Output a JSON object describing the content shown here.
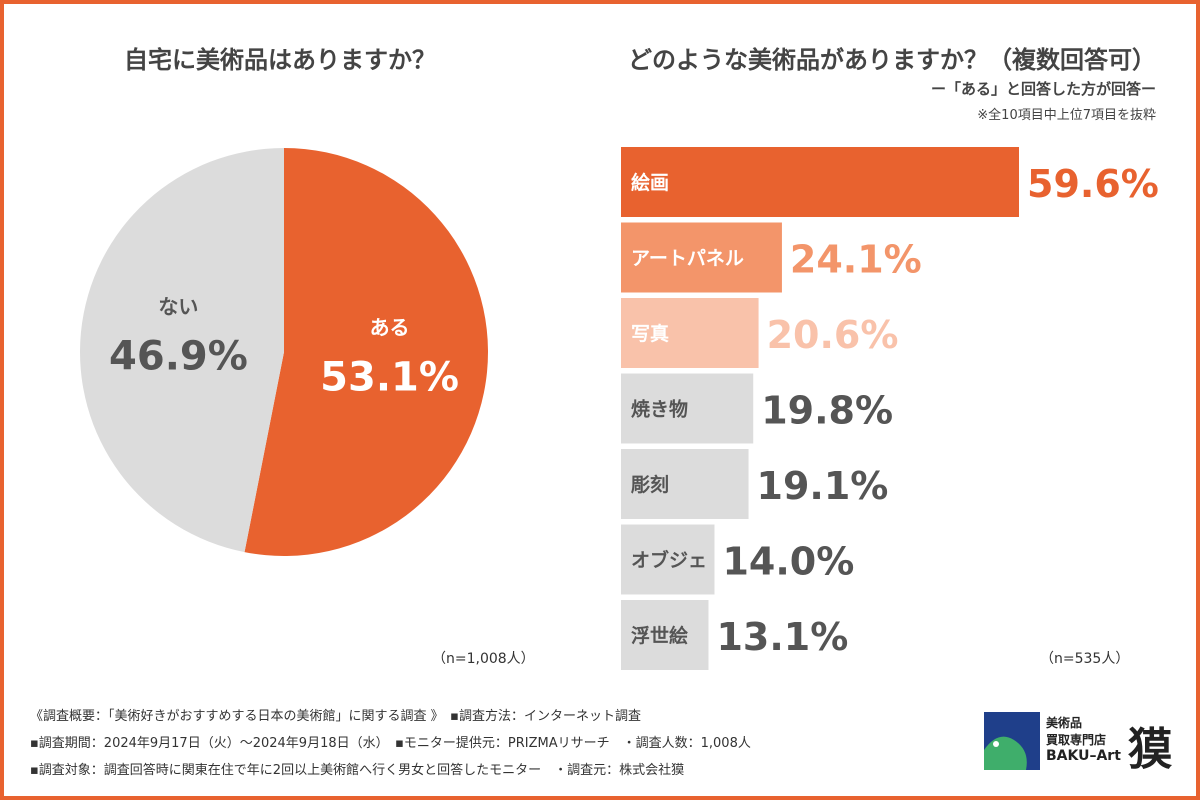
{
  "left": {
    "title": "自宅に美術品はありますか？",
    "n_label": "（n=1,008人）"
  },
  "right": {
    "title": "どのような美術品がありますか？（複数回答可）",
    "subtitle": "ー「ある」と回答した方が回答ー",
    "note": "※全10項目中上位7項目を抜粋",
    "n_label": "（n=535人）"
  },
  "chart_data": [
    {
      "type": "pie",
      "title": "自宅に美術品はありますか？",
      "slices": [
        {
          "label": "ある",
          "value": 53.1,
          "value_label": "53.1%",
          "color": "#E8622F"
        },
        {
          "label": "ない",
          "value": 46.9,
          "value_label": "46.9%",
          "color": "#DCDCDC"
        }
      ]
    },
    {
      "type": "bar",
      "orientation": "horizontal",
      "title": "どのような美術品がありますか？（複数回答可）",
      "xlim": [
        0,
        100
      ],
      "categories": [
        "絵画",
        "アートパネル",
        "写真",
        "焼き物",
        "彫刻",
        "オブジェ",
        "浮世絵"
      ],
      "values": [
        59.6,
        24.1,
        20.6,
        19.8,
        19.1,
        14.0,
        13.1
      ],
      "value_labels": [
        "59.6%",
        "24.1%",
        "20.6%",
        "19.8%",
        "19.1%",
        "14.0%",
        "13.1%"
      ],
      "colors": [
        "#E8622F",
        "#F3956A",
        "#F9C2AA",
        "#DCDCDC",
        "#DCDCDC",
        "#DCDCDC",
        "#DCDCDC"
      ],
      "label_colors": [
        "#ffffff",
        "#ffffff",
        "#ffffff",
        "#555555",
        "#555555",
        "#555555",
        "#555555"
      ],
      "value_colors": [
        "#E8622F",
        "#F3956A",
        "#F9C2AA",
        "#555555",
        "#555555",
        "#555555",
        "#555555"
      ]
    }
  ],
  "footer": {
    "line1": "《調査概要：「美術好きがおすすめする日本の美術館」に関する調査 》　▪調査方法：インターネット調査",
    "line2": "▪調査期間：2024年9月17日（火）～2024年9月18日（水）　▪モニター提供元：PRIZMAリサーチ　・調査人数：1,008人",
    "line3": "▪調査対象：調査回答時に関東在住で年に2回以上美術館へ行く男女と回答したモニター　・調査元：株式会社獏"
  },
  "logo": {
    "line1": "美術品",
    "line2": "買取専門店",
    "line3": "BAKU–Art",
    "kanji": "獏"
  },
  "colors": {
    "accent": "#E8622F",
    "gray": "#DCDCDC",
    "text": "#444444"
  }
}
